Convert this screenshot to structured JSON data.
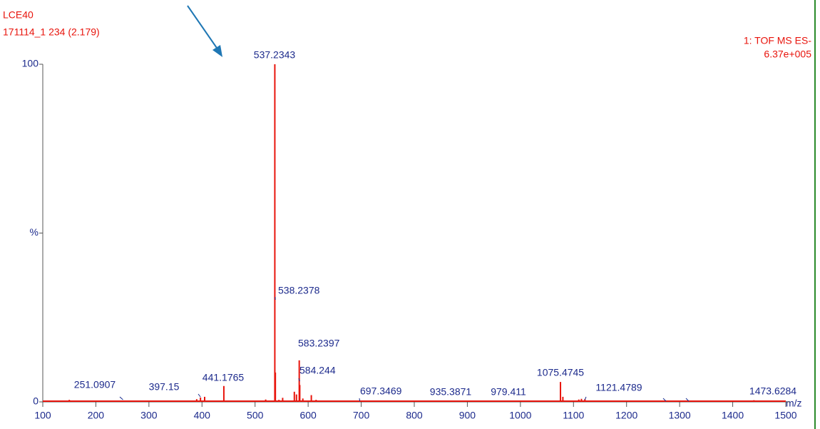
{
  "chart_data": {
    "type": "stem",
    "title": "LCE40",
    "subtitle": "171114_1 234 (2.179)",
    "annotations": [
      "1: TOF MS ES-",
      "6.37e+005"
    ],
    "x_label": "m/z",
    "xlim": [
      100,
      1500
    ],
    "xticks": [
      100,
      200,
      300,
      400,
      500,
      600,
      700,
      800,
      900,
      1000,
      1100,
      1200,
      1300,
      1400,
      1500
    ],
    "ylim": [
      0,
      100
    ],
    "yticks": [
      0,
      {
        "value": 50,
        "label": "%"
      },
      100
    ],
    "color": "#e8140c",
    "label_color": "#1c2a8c",
    "peaks": {
      "x": [
        537.2343,
        538.2378,
        583.2397,
        584.244,
        441.1765,
        397.15,
        251.0907,
        697.3469,
        935.3871,
        979.411,
        1075.4745,
        1121.4789,
        1473.6284
      ],
      "values": [
        100,
        8.7,
        12.3,
        5,
        4.7,
        1.3,
        0.4,
        0.4,
        0.4,
        0.4,
        5.9,
        0.8,
        0.4
      ]
    },
    "minor_peaks": {
      "x": [
        150,
        390,
        405,
        520,
        545,
        552,
        574,
        578,
        590,
        606,
        615,
        1080,
        1110,
        1115,
        1440
      ],
      "values": [
        0.6,
        0.8,
        1.5,
        0.7,
        0.6,
        1.2,
        3,
        2.2,
        1,
        2,
        0.6,
        1.5,
        0.7,
        0.9,
        0.5
      ]
    }
  }
}
